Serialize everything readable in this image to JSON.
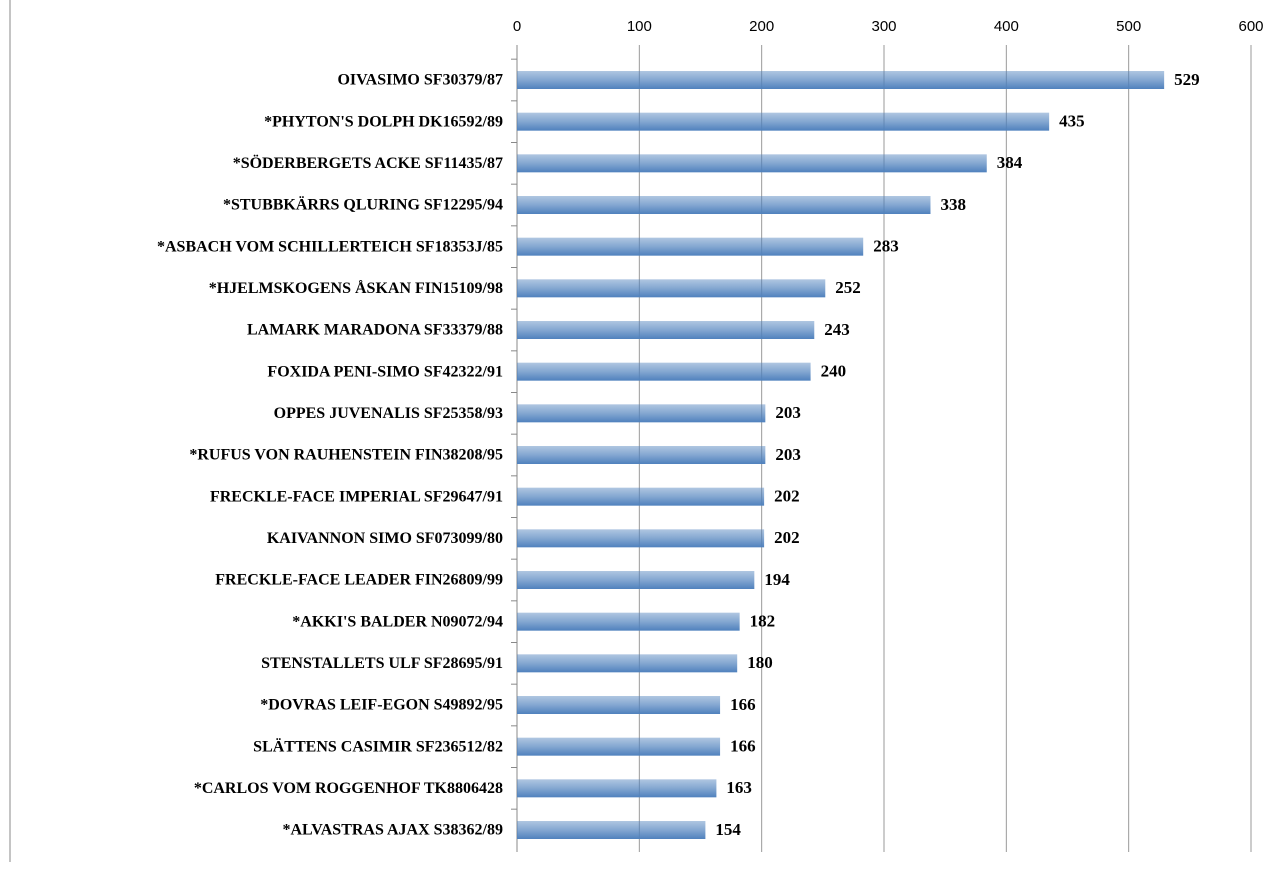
{
  "chart_data": {
    "type": "bar",
    "orientation": "horizontal",
    "categories": [
      "OIVASIMO SF30379/87",
      "*PHYTON'S DOLPH DK16592/89",
      "*SÖDERBERGETS ACKE SF11435/87",
      "*STUBBKÄRRS QLURING SF12295/94",
      "*ASBACH VOM SCHILLERTEICH SF18353J/85",
      "*HJELMSKOGENS ÅSKAN FIN15109/98",
      "LAMARK MARADONA SF33379/88",
      "FOXIDA PENI-SIMO SF42322/91",
      "OPPES JUVENALIS SF25358/93",
      "*RUFUS VON RAUHENSTEIN FIN38208/95",
      "FRECKLE-FACE IMPERIAL SF29647/91",
      "KAIVANNON SIMO SF073099/80",
      "FRECKLE-FACE LEADER FIN26809/99",
      "*AKKI'S BALDER N09072/94",
      "STENSTALLETS ULF SF28695/91",
      "*DOVRAS LEIF-EGON S49892/95",
      "SLÄTTENS CASIMIR SF236512/82",
      "*CARLOS VOM ROGGENHOF TK8806428",
      "*ALVASTRAS AJAX S38362/89"
    ],
    "values": [
      529,
      435,
      384,
      338,
      283,
      252,
      243,
      240,
      203,
      203,
      202,
      202,
      194,
      182,
      180,
      166,
      166,
      163,
      154
    ],
    "color": "#4f81bd",
    "xlim": [
      0,
      600
    ],
    "xticks": [
      0,
      100,
      200,
      300,
      400,
      500,
      600
    ],
    "grid": true
  }
}
